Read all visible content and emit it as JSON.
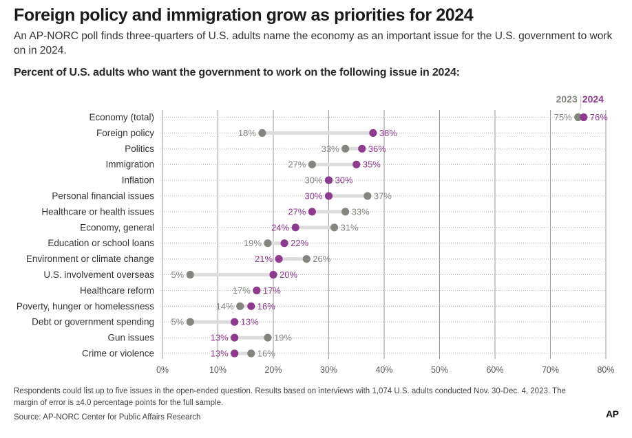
{
  "header": {
    "title": "Foreign policy and immigration grow as priorities for 2024",
    "subtitle": "An AP-NORC poll finds three-quarters of U.S. adults name the economy as an important issue for the U.S. government to work on in 2024."
  },
  "footer": {
    "note": "Respondents could list up to five issues in the open-ended question. Results based on interviews with 1,074 U.S. adults conducted Nov. 30-Dec. 4, 2023. The margin of error is ±4.0 percentage points for the full sample.",
    "source": "Source: AP-NORC Center for Public Affairs Research",
    "logo": "AP"
  },
  "colors": {
    "series_2023": "#858580",
    "series_2024": "#8e3a8e",
    "connector": "#dddddd",
    "grid": "#999999"
  },
  "chart_data": {
    "type": "dumbbell",
    "title": "Percent of U.S. adults who want the government to work on the following issue in 2024:",
    "x_ticks": [
      "0%",
      "10%",
      "20%",
      "30%",
      "40%",
      "50%",
      "60%",
      "70%",
      "80%"
    ],
    "xlim": [
      0,
      80
    ],
    "grid": true,
    "legend_position": "top-right",
    "categories": [
      "Economy (total)",
      "Foreign policy",
      "Politics",
      "Immigration",
      "Inflation",
      "Personal financial issues",
      "Healthcare or health issues",
      "Economy, general",
      "Education or school loans",
      "Environment or climate change",
      "U.S. involvement overseas",
      "Healthcare reform",
      "Poverty, hunger or homelessness",
      "Debt or government spending",
      "Gun issues",
      "Crime or violence"
    ],
    "series": [
      {
        "name": "2023",
        "values": [
          75,
          18,
          33,
          27,
          30,
          37,
          33,
          31,
          19,
          26,
          5,
          17,
          14,
          5,
          19,
          16
        ],
        "labels": [
          "75%",
          "18%",
          "33%",
          "27%",
          "30%",
          "37%",
          "33%",
          "31%",
          "19%",
          "26%",
          "5%",
          "17%",
          "14%",
          "5%",
          "19%",
          "16%"
        ]
      },
      {
        "name": "2024",
        "values": [
          76,
          38,
          36,
          35,
          30,
          30,
          27,
          24,
          22,
          21,
          20,
          17,
          16,
          13,
          13,
          13
        ],
        "labels": [
          "76%",
          "38%",
          "36%",
          "35%",
          "30%",
          "30%",
          "27%",
          "24%",
          "22%",
          "21%",
          "20%",
          "17%",
          "16%",
          "13%",
          "13%",
          "13%"
        ]
      }
    ]
  }
}
